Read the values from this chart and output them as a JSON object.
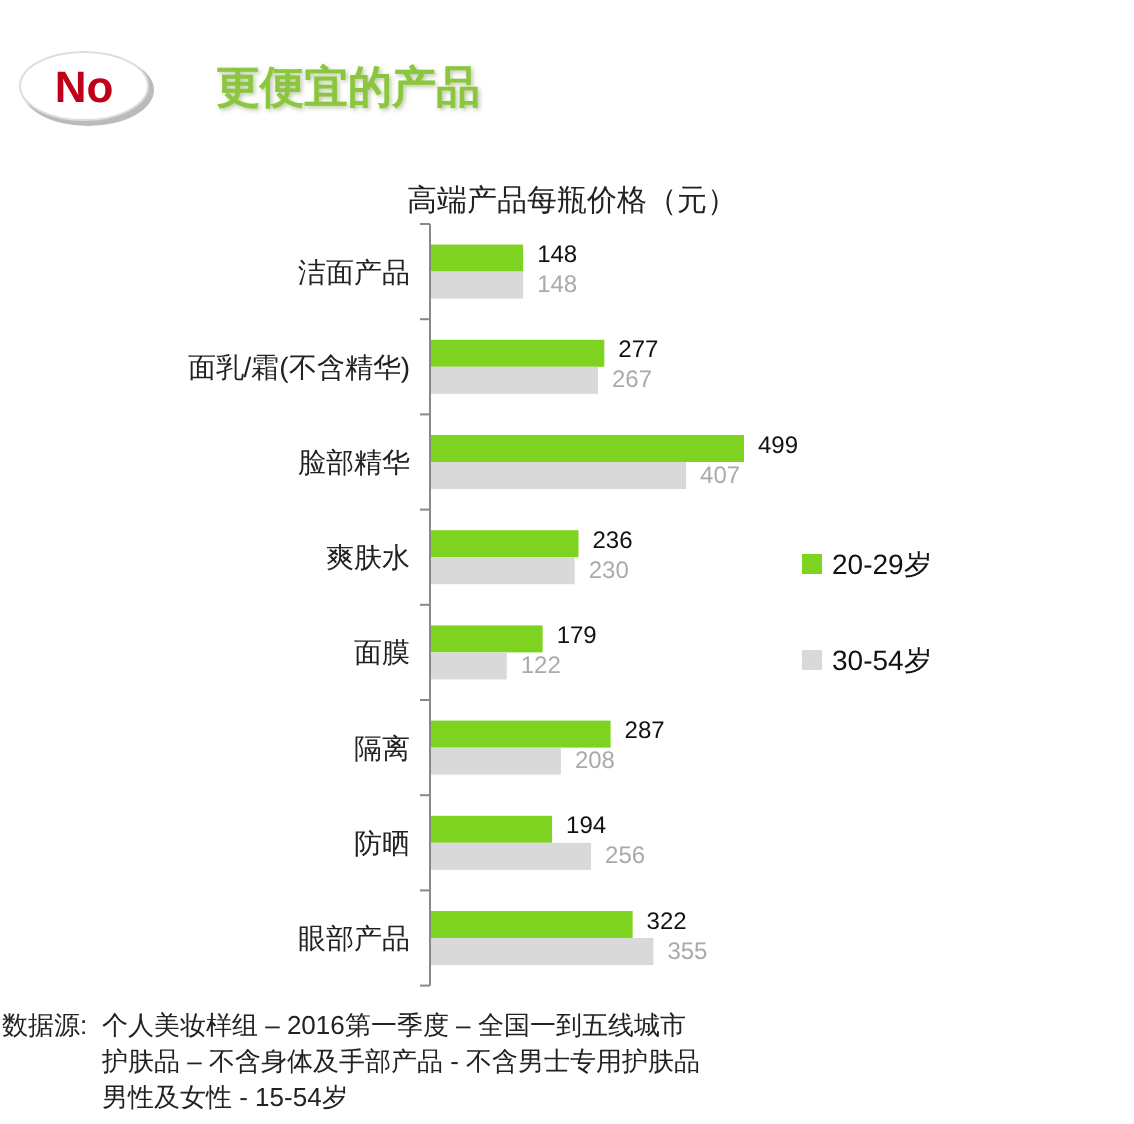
{
  "chart_data": {
    "type": "bar",
    "orientation": "horizontal",
    "title": "更便宜的产品",
    "subtitle": "高端产品每瓶价格（元）",
    "categories": [
      "洁面产品",
      "面乳/霜(不含精华)",
      "脸部精华",
      "爽肤水",
      "面膜",
      "隔离",
      "防晒",
      "眼部产品"
    ],
    "series": [
      {
        "name": "20-29岁",
        "color": "#7ed321",
        "values": [
          148,
          277,
          499,
          236,
          179,
          287,
          194,
          322
        ]
      },
      {
        "name": "30-54岁",
        "color": "#d9d9d9",
        "values": [
          148,
          267,
          407,
          230,
          122,
          208,
          256,
          355
        ]
      }
    ],
    "data_labels": true,
    "legend": "right",
    "annotations": [
      "No",
      "数据源:",
      "个人美妆样组 – 2016第一季度 – 全国一到五线城市",
      "护肤品 – 不含身体及手部产品 - 不含男士专用护肤品",
      "男性及女性 - 15-54岁"
    ]
  }
}
